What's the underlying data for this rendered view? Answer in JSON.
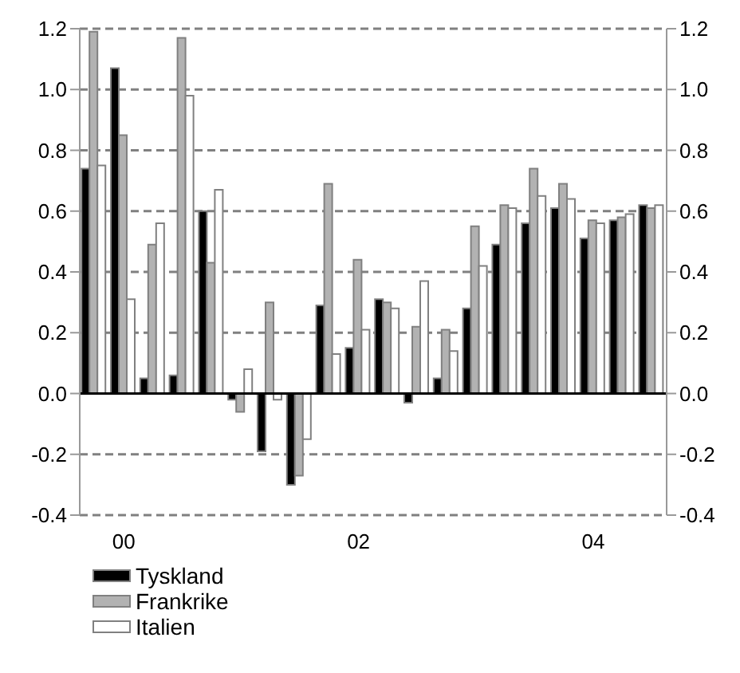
{
  "chart_data": {
    "type": "bar",
    "categories": [
      null,
      "00",
      null,
      null,
      null,
      null,
      null,
      null,
      null,
      "02",
      null,
      null,
      null,
      null,
      null,
      null,
      null,
      "04",
      null,
      null
    ],
    "series": [
      {
        "name": "Tyskland",
        "color": "#000000",
        "values": [
          0.74,
          1.07,
          0.05,
          0.06,
          0.6,
          -0.02,
          -0.19,
          -0.3,
          0.29,
          0.15,
          0.31,
          -0.03,
          0.05,
          0.28,
          0.49,
          0.56,
          0.61,
          0.51,
          0.57,
          0.62
        ]
      },
      {
        "name": "Frankrike",
        "color": "#b2b2b2",
        "values": [
          1.19,
          0.85,
          0.49,
          1.17,
          0.43,
          -0.06,
          0.3,
          -0.27,
          0.69,
          0.44,
          0.3,
          0.22,
          0.21,
          0.55,
          0.62,
          0.74,
          0.69,
          0.57,
          0.58,
          0.61
        ]
      },
      {
        "name": "Italien",
        "color": "#ffffff",
        "values": [
          0.75,
          0.31,
          0.56,
          0.98,
          0.67,
          0.08,
          -0.02,
          -0.15,
          0.13,
          0.21,
          0.28,
          0.37,
          0.14,
          0.42,
          0.61,
          0.65,
          0.64,
          0.56,
          0.59,
          0.62
        ]
      }
    ],
    "ylim": [
      -0.4,
      1.2
    ],
    "yticks": [
      {
        "value": -0.4,
        "label": "-0.4"
      },
      {
        "value": -0.2,
        "label": "-0.2"
      },
      {
        "value": 0,
        "label": "0.0"
      },
      {
        "value": 0.2,
        "label": "0.2"
      },
      {
        "value": 0.4,
        "label": "0.4"
      },
      {
        "value": 0.6,
        "label": "0.6"
      },
      {
        "value": 0.8,
        "label": "0.8"
      },
      {
        "value": 1.0,
        "label": "1.0"
      },
      {
        "value": 1.2,
        "label": "1.2"
      }
    ],
    "y2lim": [
      -0.4,
      1.2
    ],
    "y2ticks": [
      {
        "value": -0.4,
        "label": "-0.4"
      },
      {
        "value": -0.2,
        "label": "-0.2"
      },
      {
        "value": 0,
        "label": "0.0"
      },
      {
        "value": 0.2,
        "label": "0.2"
      },
      {
        "value": 0.4,
        "label": "0.4"
      },
      {
        "value": 0.6,
        "label": "0.6"
      },
      {
        "value": 0.8,
        "label": "0.8"
      },
      {
        "value": 1.0,
        "label": "1.0"
      },
      {
        "value": 1.2,
        "label": "1.2"
      }
    ],
    "grid": "y",
    "legend": "bottom left"
  }
}
